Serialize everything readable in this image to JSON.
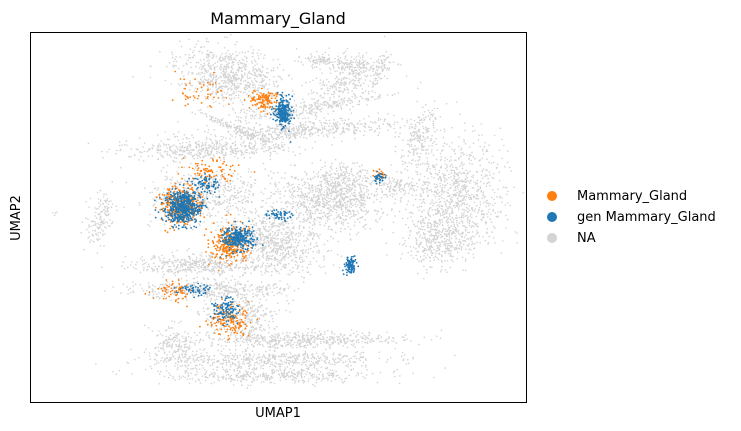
{
  "chart_data": {
    "type": "scatter",
    "title": "Mammary_Gland",
    "xlabel": "UMAP1",
    "ylabel": "UMAP2",
    "xticks": [],
    "yticks": [],
    "grid": false,
    "legend_position": "right",
    "series": [
      {
        "name": "Mammary_Gland",
        "color": "#ff7f0e"
      },
      {
        "name": "gen Mammary_Gland",
        "color": "#1f77b4"
      },
      {
        "name": "NA",
        "color": "#d3d3d3"
      }
    ]
  }
}
